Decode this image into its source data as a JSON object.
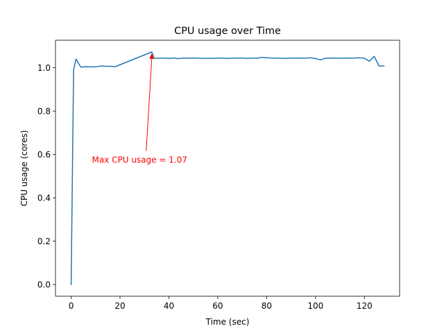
{
  "chart_data": {
    "type": "line",
    "title": "CPU usage over Time",
    "xlabel": "Time (sec)",
    "ylabel": "CPU usage (cores)",
    "xlim": [
      -6.4,
      134.4
    ],
    "ylim": [
      -0.054,
      1.127
    ],
    "xticks": [
      0,
      20,
      40,
      60,
      80,
      100,
      120
    ],
    "yticks": [
      0.0,
      0.2,
      0.4,
      0.6,
      0.8,
      1.0
    ],
    "xtick_labels": [
      "0",
      "20",
      "40",
      "60",
      "80",
      "100",
      "120"
    ],
    "ytick_labels": [
      "0.0",
      "0.2",
      "0.4",
      "0.6",
      "0.8",
      "1.0"
    ],
    "grid": false,
    "series": [
      {
        "color": "#1f77b4",
        "x": [
          0,
          1,
          2,
          3,
          4,
          6,
          8,
          10,
          12,
          14,
          16,
          18,
          33,
          34,
          36,
          38,
          40,
          42,
          44,
          46,
          48,
          50,
          52,
          54,
          56,
          58,
          60,
          62,
          64,
          66,
          68,
          70,
          72,
          74,
          76,
          78,
          80,
          82,
          84,
          86,
          88,
          90,
          92,
          94,
          96,
          98,
          100,
          102,
          104,
          106,
          108,
          110,
          112,
          114,
          116,
          118,
          120,
          122,
          124,
          126,
          128
        ],
        "y": [
          0.0,
          0.99,
          1.04,
          1.02,
          1.003,
          1.005,
          1.004,
          1.004,
          1.008,
          1.007,
          1.007,
          1.005,
          1.073,
          1.043,
          1.044,
          1.045,
          1.043,
          1.045,
          1.042,
          1.045,
          1.044,
          1.045,
          1.044,
          1.043,
          1.044,
          1.043,
          1.045,
          1.044,
          1.043,
          1.045,
          1.044,
          1.045,
          1.043,
          1.045,
          1.044,
          1.048,
          1.046,
          1.045,
          1.044,
          1.044,
          1.043,
          1.045,
          1.044,
          1.045,
          1.044,
          1.046,
          1.043,
          1.036,
          1.044,
          1.045,
          1.044,
          1.044,
          1.045,
          1.044,
          1.045,
          1.046,
          1.044,
          1.03,
          1.053,
          1.008,
          1.008
        ]
      }
    ],
    "annotation": {
      "text": "Max CPU usage = 1.07",
      "color": "#ff0000",
      "point": [
        33,
        1.073
      ],
      "text_at": [
        8.5,
        0.575
      ]
    }
  }
}
